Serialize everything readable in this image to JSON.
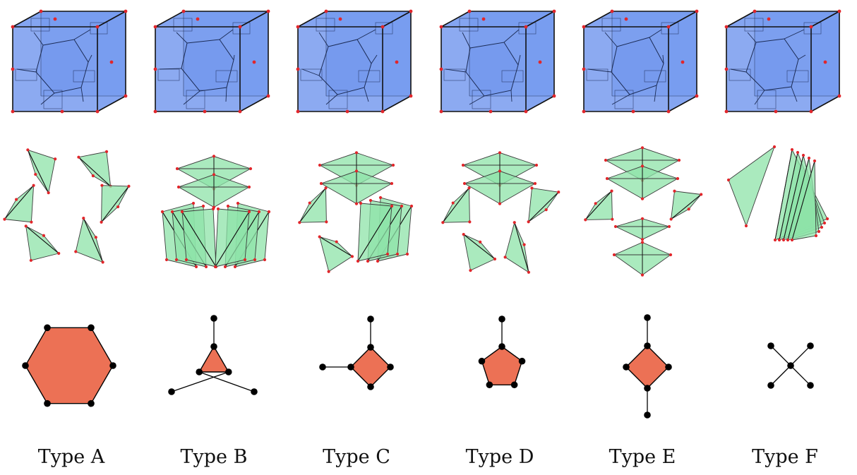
{
  "colors": {
    "cube_fill": "#6f95ee",
    "cube_edge": "#111111",
    "vertex_red": "#e1262b",
    "simplex_fill": "#8ee3a8",
    "simplex_edge": "#3a3a3a",
    "polygon_fill": "#ec7155",
    "node": "#000000"
  },
  "columns": [
    {
      "id": "A",
      "label": "Type A",
      "graph": {
        "polygon_sides": 6,
        "pendant_edges": 0
      }
    },
    {
      "id": "B",
      "label": "Type B",
      "graph": {
        "polygon_sides": 3,
        "pendant_edges": 3
      }
    },
    {
      "id": "C",
      "label": "Type C",
      "graph": {
        "polygon_sides": 4,
        "pendant_edges": 2
      }
    },
    {
      "id": "D",
      "label": "Type D",
      "graph": {
        "polygon_sides": 5,
        "pendant_edges": 1
      }
    },
    {
      "id": "E",
      "label": "Type E",
      "graph": {
        "polygon_sides": 4,
        "pendant_edges": 2
      }
    },
    {
      "id": "F",
      "label": "Type F",
      "graph": {
        "polygon_sides": 0,
        "pendant_edges": 4
      }
    }
  ]
}
